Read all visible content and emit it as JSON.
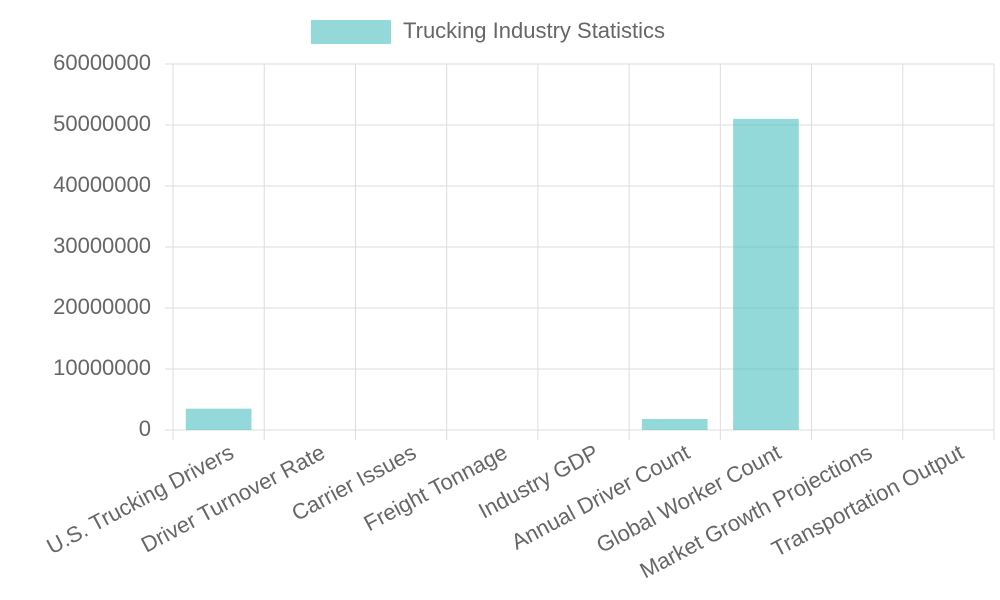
{
  "chart_data": {
    "type": "bar",
    "legend": "Trucking Industry Statistics",
    "categories": [
      "U.S. Trucking Drivers",
      "Driver Turnover Rate",
      "Carrier Issues",
      "Freight Tonnage",
      "Industry GDP",
      "Annual Driver Count",
      "Global Worker Count",
      "Market Growth Projections",
      "Transportation Output"
    ],
    "values": [
      3500000,
      0,
      0,
      0,
      0,
      1800000,
      51000000,
      0,
      0
    ],
    "color": "rgba(75, 192, 192, 0.6)",
    "ylim": [
      0,
      60000000
    ],
    "yticks": [
      0,
      10000000,
      20000000,
      30000000,
      40000000,
      50000000,
      60000000
    ],
    "grid": true
  }
}
